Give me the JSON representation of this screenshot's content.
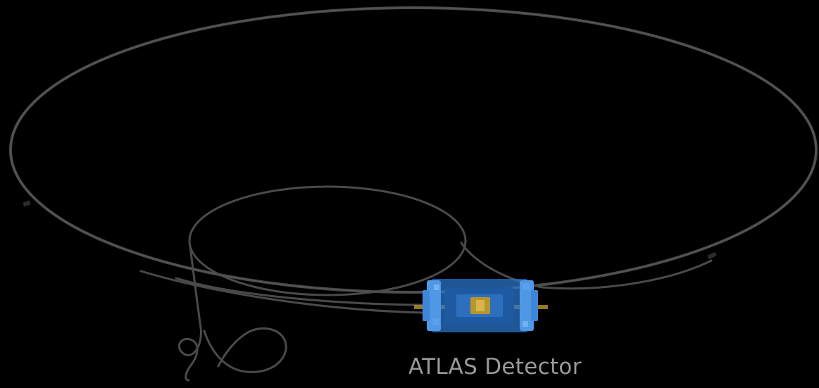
{
  "caption": "ATLAS Detector",
  "colors": {
    "background": "#000000",
    "ring": "#4a4a4a",
    "ring_highlight": "#6a6a6a",
    "detector_blue": "#2a74c8",
    "detector_blue_light": "#4f98e6",
    "detector_core": "#b8962e",
    "caption_text": "#9a9a9a"
  },
  "icons": {
    "detector": "atlas-detector-icon"
  }
}
